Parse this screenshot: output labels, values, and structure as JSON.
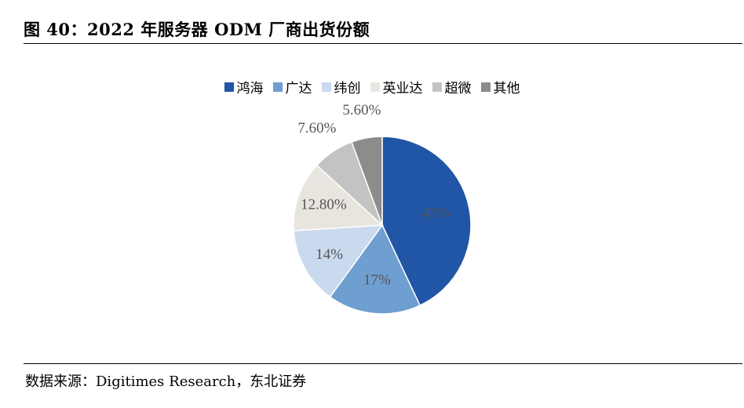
{
  "figure": {
    "title": "图 40：2022 年服务器 ODM 厂商出货份额",
    "source": "数据来源：Digitimes Research，东北证券"
  },
  "chart_data": {
    "type": "pie",
    "title": "图 40：2022 年服务器 ODM 厂商出货份额",
    "categories": [
      "鸿海",
      "广达",
      "纬创",
      "英业达",
      "超微",
      "其他"
    ],
    "values": [
      43,
      17,
      14,
      12.8,
      7.6,
      5.6
    ],
    "value_labels": [
      "43%",
      "17%",
      "14%",
      "12.80%",
      "7.60%",
      "5.60%"
    ],
    "colors": [
      "#2155a5",
      "#6f9ed0",
      "#c9d9ee",
      "#e8e5df",
      "#c3c3c3",
      "#8c8c8c"
    ],
    "legend_position": "top",
    "start_angle_deg": 0,
    "direction": "clockwise"
  }
}
